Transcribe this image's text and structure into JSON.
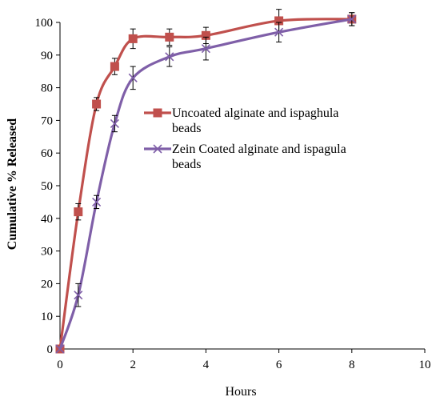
{
  "chart_data": {
    "type": "line",
    "title": "",
    "xlabel": "Hours",
    "ylabel": "Cumulative % Released",
    "xlim": [
      0,
      10
    ],
    "ylim": [
      0,
      100
    ],
    "x_ticks": [
      "0",
      "2",
      "4",
      "6",
      "8",
      "10"
    ],
    "y_ticks": [
      "0",
      "10",
      "20",
      "30",
      "40",
      "50",
      "60",
      "70",
      "80",
      "90",
      "100"
    ],
    "grid": false,
    "legend_position": "center-right",
    "series": [
      {
        "name": "Uncoated alginate and ispaghula beads",
        "name_lines": [
          "Uncoated alginate and ispaghula",
          "beads"
        ],
        "color": "#c0504d",
        "marker": "square",
        "x": [
          0,
          0.5,
          1,
          1.5,
          2,
          3,
          4,
          6,
          8
        ],
        "y": [
          0,
          42,
          75,
          86.5,
          95,
          95.5,
          96,
          100.5,
          101
        ],
        "err": [
          0,
          2.5,
          2,
          2.5,
          3,
          2.5,
          2.5,
          3.5,
          2
        ]
      },
      {
        "name": "Zein Coated alginate and ispagula beads",
        "name_lines": [
          "Zein Coated alginate and ispagula",
          "beads"
        ],
        "color": "#7f5fa8",
        "marker": "x",
        "x": [
          0,
          0.5,
          1,
          1.5,
          2,
          3,
          4,
          6,
          8
        ],
        "y": [
          0,
          16.5,
          45,
          69,
          83,
          89.5,
          92,
          97,
          101
        ],
        "err": [
          0,
          3.5,
          2,
          2.5,
          3.5,
          3,
          3.5,
          3,
          2
        ]
      }
    ]
  }
}
